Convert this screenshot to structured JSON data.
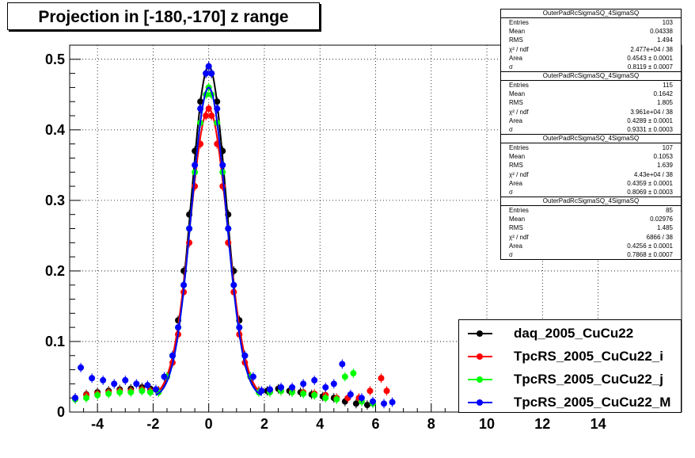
{
  "title": "Projection in [-180,-170] z range",
  "stats_boxes": [
    {
      "name": "OuterPadRcSigmaSQ_4SigmaSQ",
      "rows": [
        {
          "k": "Entries",
          "v": "103"
        },
        {
          "k": "Mean",
          "v": "0.04338"
        },
        {
          "k": "RMS",
          "v": "1.494"
        },
        {
          "k": "χ² / ndf",
          "v": "2.477e+04 / 38"
        },
        {
          "k": "Area",
          "v": "0.4543 ± 0.0001"
        },
        {
          "k": "σ",
          "v": "0.8119 ± 0.0007"
        }
      ]
    },
    {
      "name": "OuterPadRcSigmaSQ_4SigmaSQ",
      "rows": [
        {
          "k": "Entries",
          "v": "115"
        },
        {
          "k": "Mean",
          "v": "0.1642"
        },
        {
          "k": "RMS",
          "v": "1.805"
        },
        {
          "k": "χ² / ndf",
          "v": "3.961e+04 / 38"
        },
        {
          "k": "Area",
          "v": "0.4289 ± 0.0001"
        },
        {
          "k": "σ",
          "v": "0.9331 ± 0.0003"
        }
      ]
    },
    {
      "name": "OuterPadRcSigmaSQ_4SigmaSQ",
      "rows": [
        {
          "k": "Entries",
          "v": "107"
        },
        {
          "k": "Mean",
          "v": "0.1053"
        },
        {
          "k": "RMS",
          "v": "1.639"
        },
        {
          "k": "χ² / ndf",
          "v": "4.43e+04 / 38"
        },
        {
          "k": "Area",
          "v": "0.4359 ± 0.0001"
        },
        {
          "k": "σ",
          "v": "0.8069 ± 0.0003"
        }
      ]
    },
    {
      "name": "OuterPadRcSigmaSQ_4SigmaSQ",
      "rows": [
        {
          "k": "Entries",
          "v": "85"
        },
        {
          "k": "Mean",
          "v": "0.02976"
        },
        {
          "k": "RMS",
          "v": "1.485"
        },
        {
          "k": "χ² / ndf",
          "v": "6866 / 38"
        },
        {
          "k": "Area",
          "v": "0.4256 ± 0.0001"
        },
        {
          "k": "σ",
          "v": "0.7868 ± 0.0007"
        }
      ]
    }
  ],
  "chart_data": {
    "type": "scatter",
    "title": "Projection in [-180,-170] z range",
    "xlabel": "",
    "ylabel": "",
    "xlim": [
      -5,
      17
    ],
    "ylim": [
      0,
      0.52
    ],
    "xticks": [
      -4,
      -2,
      0,
      2,
      4,
      6,
      8,
      10,
      12,
      14
    ],
    "yticks": [
      0,
      0.1,
      0.2,
      0.3,
      0.4,
      0.5
    ],
    "grid": true,
    "legend_position": "bottom-right",
    "series": [
      {
        "name": "daq_2005_CuCu22",
        "color": "#000000",
        "amplitude": 0.49,
        "sigma": 0.62,
        "points": [
          [
            -4.8,
            0.02
          ],
          [
            -4.4,
            0.025
          ],
          [
            -4.0,
            0.028
          ],
          [
            -3.6,
            0.03
          ],
          [
            -3.2,
            0.032
          ],
          [
            -2.8,
            0.033
          ],
          [
            -2.4,
            0.035
          ],
          [
            -2.1,
            0.033
          ],
          [
            -1.8,
            0.03
          ],
          [
            -1.5,
            0.05
          ],
          [
            -1.3,
            0.08
          ],
          [
            -1.1,
            0.13
          ],
          [
            -0.9,
            0.2
          ],
          [
            -0.7,
            0.28
          ],
          [
            -0.5,
            0.37
          ],
          [
            -0.3,
            0.44
          ],
          [
            -0.1,
            0.48
          ],
          [
            0.0,
            0.49
          ],
          [
            0.1,
            0.48
          ],
          [
            0.3,
            0.44
          ],
          [
            0.5,
            0.37
          ],
          [
            0.7,
            0.28
          ],
          [
            0.9,
            0.2
          ],
          [
            1.1,
            0.13
          ],
          [
            1.3,
            0.08
          ],
          [
            1.5,
            0.05
          ],
          [
            1.8,
            0.03
          ],
          [
            2.1,
            0.03
          ],
          [
            2.5,
            0.033
          ],
          [
            2.9,
            0.03
          ],
          [
            3.3,
            0.028
          ],
          [
            3.7,
            0.025
          ],
          [
            4.1,
            0.022
          ],
          [
            4.5,
            0.02
          ],
          [
            4.9,
            0.015
          ],
          [
            5.3,
            0.012
          ],
          [
            5.7,
            0.01
          ]
        ]
      },
      {
        "name": "TpcRS_2005_CuCu22_i",
        "color": "#ff0000",
        "amplitude": 0.43,
        "sigma": 0.66,
        "points": [
          [
            -4.8,
            0.02
          ],
          [
            -4.4,
            0.024
          ],
          [
            -4.0,
            0.026
          ],
          [
            -3.6,
            0.028
          ],
          [
            -3.2,
            0.03
          ],
          [
            -2.8,
            0.03
          ],
          [
            -2.4,
            0.032
          ],
          [
            -2.1,
            0.03
          ],
          [
            -1.8,
            0.03
          ],
          [
            -1.5,
            0.05
          ],
          [
            -1.3,
            0.07
          ],
          [
            -1.1,
            0.11
          ],
          [
            -0.9,
            0.17
          ],
          [
            -0.7,
            0.24
          ],
          [
            -0.5,
            0.32
          ],
          [
            -0.3,
            0.38
          ],
          [
            -0.1,
            0.42
          ],
          [
            0.0,
            0.43
          ],
          [
            0.1,
            0.42
          ],
          [
            0.3,
            0.38
          ],
          [
            0.5,
            0.32
          ],
          [
            0.7,
            0.24
          ],
          [
            0.9,
            0.17
          ],
          [
            1.1,
            0.11
          ],
          [
            1.3,
            0.07
          ],
          [
            1.5,
            0.05
          ],
          [
            1.8,
            0.03
          ],
          [
            2.2,
            0.03
          ],
          [
            2.6,
            0.03
          ],
          [
            3.0,
            0.03
          ],
          [
            3.4,
            0.028
          ],
          [
            3.8,
            0.026
          ],
          [
            4.2,
            0.024
          ],
          [
            4.6,
            0.02
          ],
          [
            5.0,
            0.02
          ],
          [
            5.4,
            0.02
          ],
          [
            5.8,
            0.03
          ],
          [
            6.2,
            0.048
          ],
          [
            6.4,
            0.03
          ]
        ]
      },
      {
        "name": "TpcRS_2005_CuCu22_j",
        "color": "#00ff00",
        "amplitude": 0.46,
        "sigma": 0.62,
        "points": [
          [
            -4.8,
            0.018
          ],
          [
            -4.4,
            0.02
          ],
          [
            -4.0,
            0.024
          ],
          [
            -3.6,
            0.026
          ],
          [
            -3.2,
            0.028
          ],
          [
            -2.8,
            0.028
          ],
          [
            -2.4,
            0.03
          ],
          [
            -2.1,
            0.028
          ],
          [
            -1.8,
            0.028
          ],
          [
            -1.5,
            0.05
          ],
          [
            -1.3,
            0.08
          ],
          [
            -1.1,
            0.12
          ],
          [
            -0.9,
            0.18
          ],
          [
            -0.7,
            0.26
          ],
          [
            -0.5,
            0.34
          ],
          [
            -0.3,
            0.41
          ],
          [
            -0.1,
            0.45
          ],
          [
            0.0,
            0.46
          ],
          [
            0.1,
            0.45
          ],
          [
            0.3,
            0.41
          ],
          [
            0.5,
            0.34
          ],
          [
            0.7,
            0.26
          ],
          [
            0.9,
            0.18
          ],
          [
            1.1,
            0.12
          ],
          [
            1.3,
            0.08
          ],
          [
            1.5,
            0.05
          ],
          [
            1.8,
            0.028
          ],
          [
            2.2,
            0.028
          ],
          [
            2.6,
            0.03
          ],
          [
            3.0,
            0.028
          ],
          [
            3.4,
            0.026
          ],
          [
            3.8,
            0.024
          ],
          [
            4.2,
            0.02
          ],
          [
            4.6,
            0.018
          ],
          [
            4.9,
            0.05
          ],
          [
            5.2,
            0.055
          ],
          [
            5.5,
            0.015
          ],
          [
            5.9,
            0.012
          ]
        ]
      },
      {
        "name": "TpcRS_2005_CuCu22_M",
        "color": "#0000ff",
        "amplitude": 0.46,
        "sigma": 0.62,
        "points": [
          [
            -4.8,
            0.02
          ],
          [
            -4.6,
            0.063
          ],
          [
            -4.2,
            0.048
          ],
          [
            -3.8,
            0.045
          ],
          [
            -3.4,
            0.04
          ],
          [
            -3.0,
            0.045
          ],
          [
            -2.6,
            0.04
          ],
          [
            -2.2,
            0.038
          ],
          [
            -1.9,
            0.032
          ],
          [
            -1.6,
            0.05
          ],
          [
            -1.3,
            0.08
          ],
          [
            -1.1,
            0.12
          ],
          [
            -0.9,
            0.18
          ],
          [
            -0.7,
            0.26
          ],
          [
            -0.5,
            0.35
          ],
          [
            -0.3,
            0.43
          ],
          [
            -0.1,
            0.48
          ],
          [
            0.0,
            0.49
          ],
          [
            0.1,
            0.48
          ],
          [
            0.3,
            0.43
          ],
          [
            0.5,
            0.35
          ],
          [
            0.7,
            0.26
          ],
          [
            0.9,
            0.18
          ],
          [
            1.1,
            0.12
          ],
          [
            1.3,
            0.08
          ],
          [
            1.6,
            0.05
          ],
          [
            1.9,
            0.03
          ],
          [
            2.2,
            0.032
          ],
          [
            2.6,
            0.035
          ],
          [
            3.0,
            0.035
          ],
          [
            3.4,
            0.04
          ],
          [
            3.8,
            0.045
          ],
          [
            4.2,
            0.035
          ],
          [
            4.5,
            0.04
          ],
          [
            4.8,
            0.068
          ],
          [
            5.1,
            0.025
          ],
          [
            5.5,
            0.02
          ],
          [
            5.9,
            0.015
          ],
          [
            6.3,
            0.012
          ],
          [
            6.6,
            0.014
          ]
        ]
      }
    ]
  }
}
